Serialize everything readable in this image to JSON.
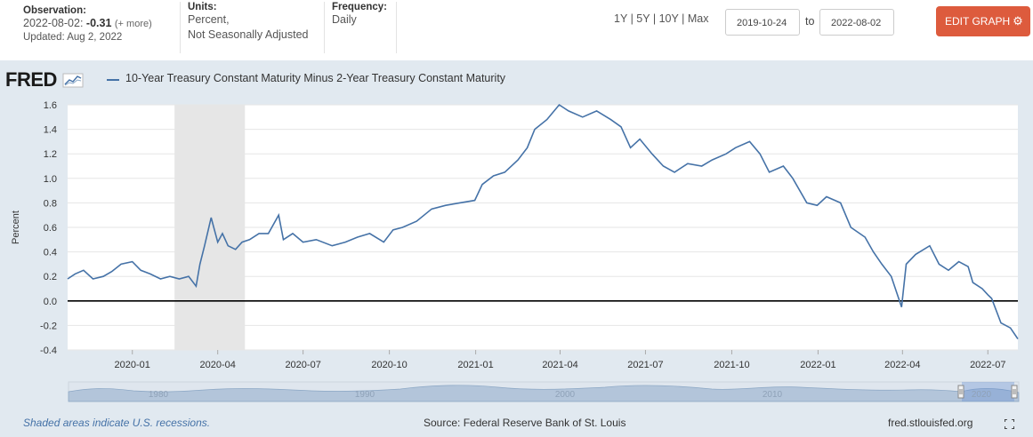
{
  "header": {
    "observation_label": "Observation:",
    "observation_date": "2022-08-02:",
    "observation_value": "-0.31",
    "observation_more": "(+ more)",
    "updated": "Updated: Aug 2, 2022",
    "units_label": "Units:",
    "units_line1": "Percent,",
    "units_line2": "Not Seasonally Adjusted",
    "frequency_label": "Frequency:",
    "frequency_value": "Daily"
  },
  "range_buttons": [
    "1Y",
    "5Y",
    "10Y",
    "Max"
  ],
  "range_sep": "|",
  "date_from": "2019-10-24",
  "date_to_label": "to",
  "date_to": "2022-08-02",
  "edit_button": "EDIT GRAPH",
  "logo_text": "FRED",
  "footer": {
    "recession_note": "Shaded areas indicate U.S. recessions.",
    "source": "Source: Federal Reserve Bank of St. Louis",
    "site": "fred.stlouisfed.org"
  },
  "navigator_labels": [
    "1980",
    "1990",
    "2000",
    "2010",
    "2020"
  ],
  "colors": {
    "series": "#4572a7",
    "accent": "#dd5b3d",
    "panel": "#e1e9f0",
    "recession": "#e6e6e6"
  },
  "chart_data": {
    "type": "line",
    "title": "10-Year Treasury Constant Maturity Minus 2-Year Treasury Constant Maturity",
    "ylabel": "Percent",
    "xlabel": "",
    "ylim": [
      -0.4,
      1.6
    ],
    "yticks": [
      1.6,
      1.4,
      1.2,
      1.0,
      0.8,
      0.6,
      0.4,
      0.2,
      0.0,
      -0.2,
      -0.4
    ],
    "ytick_labels": [
      "1.6",
      "1.4",
      "1.2",
      "1.0",
      "0.8",
      "0.6",
      "0.4",
      "0.2",
      "0.0",
      "-0.2",
      "-0.4"
    ],
    "xlim": [
      "2019-10-24",
      "2022-08-02"
    ],
    "xticks": [
      "2020-01-01",
      "2020-04-01",
      "2020-07-01",
      "2020-10-01",
      "2021-01-01",
      "2021-04-01",
      "2021-07-01",
      "2021-10-01",
      "2022-01-01",
      "2022-04-01",
      "2022-07-01"
    ],
    "xtick_labels": [
      "2020-01",
      "2020-04",
      "2020-07",
      "2020-10",
      "2021-01",
      "2021-04",
      "2021-07",
      "2021-10",
      "2022-01",
      "2022-04",
      "2022-07"
    ],
    "grid": true,
    "recession": {
      "start": "2020-02-15",
      "end": "2020-04-30"
    },
    "zero_line": true,
    "series": [
      {
        "name": "10-Year Treasury Constant Maturity Minus 2-Year Treasury Constant Maturity",
        "x": [
          "2019-10-24",
          "2019-11-01",
          "2019-11-10",
          "2019-11-20",
          "2019-12-01",
          "2019-12-10",
          "2019-12-20",
          "2020-01-01",
          "2020-01-10",
          "2020-01-20",
          "2020-01-31",
          "2020-02-10",
          "2020-02-20",
          "2020-03-01",
          "2020-03-09",
          "2020-03-13",
          "2020-03-18",
          "2020-03-25",
          "2020-04-01",
          "2020-04-06",
          "2020-04-12",
          "2020-04-20",
          "2020-04-27",
          "2020-05-05",
          "2020-05-15",
          "2020-05-25",
          "2020-06-05",
          "2020-06-10",
          "2020-06-20",
          "2020-07-01",
          "2020-07-15",
          "2020-08-01",
          "2020-08-15",
          "2020-08-28",
          "2020-09-10",
          "2020-09-25",
          "2020-10-05",
          "2020-10-15",
          "2020-10-30",
          "2020-11-15",
          "2020-11-30",
          "2020-12-15",
          "2020-12-31",
          "2021-01-08",
          "2021-01-20",
          "2021-02-01",
          "2021-02-15",
          "2021-02-25",
          "2021-03-05",
          "2021-03-18",
          "2021-03-31",
          "2021-04-10",
          "2021-04-25",
          "2021-05-10",
          "2021-05-25",
          "2021-06-05",
          "2021-06-15",
          "2021-06-25",
          "2021-07-08",
          "2021-07-20",
          "2021-08-01",
          "2021-08-15",
          "2021-08-30",
          "2021-09-10",
          "2021-09-25",
          "2021-10-05",
          "2021-10-20",
          "2021-10-31",
          "2021-11-10",
          "2021-11-25",
          "2021-12-05",
          "2021-12-20",
          "2021-12-31",
          "2022-01-10",
          "2022-01-25",
          "2022-02-05",
          "2022-02-20",
          "2022-03-01",
          "2022-03-10",
          "2022-03-20",
          "2022-03-31",
          "2022-04-05",
          "2022-04-15",
          "2022-04-30",
          "2022-05-10",
          "2022-05-20",
          "2022-05-31",
          "2022-06-10",
          "2022-06-15",
          "2022-06-25",
          "2022-07-01",
          "2022-07-05",
          "2022-07-15",
          "2022-07-25",
          "2022-08-02"
        ],
        "values": [
          0.18,
          0.22,
          0.25,
          0.18,
          0.2,
          0.24,
          0.3,
          0.32,
          0.25,
          0.22,
          0.18,
          0.2,
          0.18,
          0.2,
          0.12,
          0.3,
          0.45,
          0.68,
          0.48,
          0.55,
          0.45,
          0.42,
          0.48,
          0.5,
          0.55,
          0.55,
          0.7,
          0.5,
          0.55,
          0.48,
          0.5,
          0.45,
          0.48,
          0.52,
          0.55,
          0.48,
          0.58,
          0.6,
          0.65,
          0.75,
          0.78,
          0.8,
          0.82,
          0.95,
          1.02,
          1.05,
          1.15,
          1.25,
          1.4,
          1.48,
          1.6,
          1.55,
          1.5,
          1.55,
          1.48,
          1.42,
          1.25,
          1.32,
          1.2,
          1.1,
          1.05,
          1.12,
          1.1,
          1.15,
          1.2,
          1.25,
          1.3,
          1.2,
          1.05,
          1.1,
          1.0,
          0.8,
          0.78,
          0.85,
          0.8,
          0.6,
          0.52,
          0.4,
          0.3,
          0.2,
          -0.05,
          0.3,
          0.38,
          0.45,
          0.3,
          0.25,
          0.32,
          0.28,
          0.15,
          0.1,
          0.05,
          0.02,
          -0.18,
          -0.22,
          -0.31
        ]
      }
    ]
  }
}
